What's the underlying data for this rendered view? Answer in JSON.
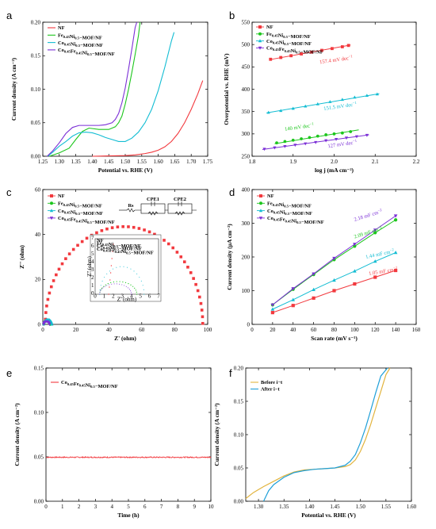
{
  "chart_data": [
    {
      "id": "a",
      "panel_label": "a",
      "type": "line",
      "xlabel": "Potential vs. RHE (V)",
      "ylabel": "Current density (A cm⁻²)",
      "xlim": [
        1.25,
        1.75
      ],
      "ylim": [
        0,
        0.2
      ],
      "xticks": [
        "1.25",
        "1.30",
        "1.35",
        "1.40",
        "1.45",
        "1.50",
        "1.55",
        "1.60",
        "1.65",
        "1.70",
        "1.75"
      ],
      "yticks": [
        "0.00",
        "0.05",
        "0.10",
        "0.15",
        "0.20"
      ],
      "legend_position": "top-left",
      "series": [
        {
          "name": "NF",
          "color": "#f2393e",
          "x": [
            1.4,
            1.45,
            1.5,
            1.53,
            1.56,
            1.58,
            1.6,
            1.62,
            1.64,
            1.66,
            1.68,
            1.7,
            1.72,
            1.735
          ],
          "y": [
            0,
            0.0005,
            0.001,
            0.002,
            0.004,
            0.006,
            0.009,
            0.014,
            0.022,
            0.034,
            0.05,
            0.07,
            0.093,
            0.113
          ]
        },
        {
          "name": "Fe0.45Ni0.5−MOF/NF",
          "color": "#1cc61c",
          "x": [
            1.27,
            1.3,
            1.33,
            1.35,
            1.37,
            1.39,
            1.42,
            1.45,
            1.47,
            1.48,
            1.49,
            1.5,
            1.51,
            1.52,
            1.53,
            1.54,
            1.545
          ],
          "y": [
            0,
            0.005,
            0.012,
            0.025,
            0.037,
            0.042,
            0.04,
            0.04,
            0.044,
            0.05,
            0.06,
            0.078,
            0.1,
            0.125,
            0.152,
            0.18,
            0.2
          ]
        },
        {
          "name": "Co0.45Ni0.5−MOF/NF",
          "color": "#13bdd3",
          "x": [
            1.265,
            1.28,
            1.3,
            1.32,
            1.34,
            1.36,
            1.38,
            1.4,
            1.42,
            1.44,
            1.46,
            1.48,
            1.5,
            1.52,
            1.54,
            1.56,
            1.58,
            1.6,
            1.62,
            1.64,
            1.648
          ],
          "y": [
            0,
            0.006,
            0.015,
            0.022,
            0.03,
            0.035,
            0.036,
            0.035,
            0.032,
            0.028,
            0.025,
            0.022,
            0.022,
            0.027,
            0.036,
            0.05,
            0.07,
            0.098,
            0.133,
            0.172,
            0.185
          ]
        },
        {
          "name": "Co0.45Fe0.45Ni0.5−MOF/NF",
          "color": "#7b2fd6",
          "x": [
            1.263,
            1.28,
            1.3,
            1.32,
            1.34,
            1.36,
            1.38,
            1.4,
            1.42,
            1.44,
            1.46,
            1.47,
            1.48,
            1.49,
            1.5,
            1.51,
            1.52,
            1.53,
            1.535
          ],
          "y": [
            0,
            0.008,
            0.02,
            0.034,
            0.043,
            0.046,
            0.046,
            0.046,
            0.046,
            0.047,
            0.05,
            0.055,
            0.064,
            0.08,
            0.102,
            0.13,
            0.16,
            0.192,
            0.2
          ]
        }
      ]
    },
    {
      "id": "b",
      "panel_label": "b",
      "type": "scatter",
      "xlabel": "log j (mA cm⁻²)",
      "ylabel": "Overpotential vs. RHE (mV)",
      "xlim": [
        1.8,
        2.2
      ],
      "ylim": [
        250,
        550
      ],
      "xticks": [
        "1.8",
        "1.9",
        "2.0",
        "2.1",
        "2.2"
      ],
      "yticks": [
        "250",
        "300",
        "350",
        "400",
        "450",
        "500",
        "550"
      ],
      "legend_position": "top-left",
      "series": [
        {
          "name": "NF",
          "color": "#f2393e",
          "marker": "square",
          "x": [
            1.845,
            1.87,
            1.895,
            1.92,
            1.945,
            1.97,
            1.995,
            2.02,
            2.035
          ],
          "y": [
            467,
            471,
            475,
            479,
            483,
            487,
            491,
            495,
            498
          ],
          "fit": [
            [
              1.842,
              466
            ],
            [
              2.04,
              499
            ]
          ]
        },
        {
          "name": "Fe0.45Ni0.5−MOF/NF",
          "color": "#1cc61c",
          "marker": "circle",
          "x": [
            1.86,
            1.88,
            1.9,
            1.92,
            1.94,
            1.96,
            1.98,
            2.0,
            2.02,
            2.04
          ],
          "y": [
            280,
            283,
            286,
            289,
            292,
            295,
            298,
            300,
            302,
            305
          ],
          "fit": [
            [
              1.855,
              278
            ],
            [
              2.06,
              309
            ]
          ]
        },
        {
          "name": "Co0.45Ni0.5−MOF/NF",
          "color": "#13bdd3",
          "marker": "triangle",
          "x": [
            1.84,
            1.87,
            1.9,
            1.93,
            1.96,
            1.99,
            2.02,
            2.05,
            2.08,
            2.105
          ],
          "y": [
            348,
            352,
            357,
            362,
            367,
            372,
            377,
            382,
            386,
            389
          ],
          "fit": [
            [
              1.835,
              347
            ],
            [
              2.11,
              390
            ]
          ]
        },
        {
          "name": "Co0.45Fe0.45Ni0.5−MOF/NF",
          "color": "#7b2fd6",
          "marker": "triangle-down",
          "x": [
            1.83,
            1.855,
            1.88,
            1.905,
            1.93,
            1.955,
            1.98,
            2.005,
            2.03,
            2.055,
            2.08
          ],
          "y": [
            266,
            269,
            272,
            275,
            278,
            281,
            285,
            288,
            291,
            294,
            297
          ],
          "fit": [
            [
              1.825,
              265
            ],
            [
              2.085,
              298
            ]
          ]
        }
      ],
      "annotations": [
        {
          "text": "157.4 mV dec",
          "sup": "−1",
          "color": "#f2393e",
          "x": 1.965,
          "y": 457
        },
        {
          "text": "151.5 mV dec",
          "sup": "−1",
          "color": "#13bdd3",
          "x": 1.975,
          "y": 353
        },
        {
          "text": "140 mV dec",
          "sup": "−1",
          "color": "#1cc61c",
          "x": 1.88,
          "y": 307
        },
        {
          "text": "127 mV dec",
          "sup": "−1",
          "color": "#7b2fd6",
          "x": 1.985,
          "y": 269
        }
      ]
    },
    {
      "id": "c",
      "panel_label": "c",
      "type": "scatter",
      "xlabel": "Z' (ohm)",
      "ylabel": "Z'' (ohm)",
      "xlim": [
        0,
        100
      ],
      "ylim": [
        0,
        60
      ],
      "xticks": [
        "0",
        "20",
        "40",
        "60",
        "80",
        "100"
      ],
      "yticks": [
        "0",
        "20",
        "40",
        "60"
      ],
      "legend_position": "top-left",
      "series": [
        {
          "name": "NF",
          "color": "#f2393e",
          "marker": "square",
          "semicircle": {
            "start": 1.5,
            "end": 97,
            "peak": 43.5,
            "points": 46
          }
        },
        {
          "name": "Fe0.45Ni0.5−MOF/NF",
          "color": "#1cc61c",
          "marker": "circle",
          "semicircle": {
            "start": 0.5,
            "end": 4.6,
            "peak": 1.6,
            "points": 12
          }
        },
        {
          "name": "Co0.45Ni0.5−MOF/NF",
          "color": "#13bdd3",
          "marker": "triangle",
          "semicircle": {
            "start": 0.5,
            "end": 5.5,
            "peak": 2.2,
            "points": 12
          }
        },
        {
          "name": "Co0.45Fe0.45Ni0.5−MOF/NF",
          "color": "#7b2fd6",
          "marker": "triangle-down",
          "semicircle": {
            "start": 0.5,
            "end": 4.0,
            "peak": 1.3,
            "points": 10
          }
        }
      ],
      "inset": {
        "xlim": [
          0,
          7
        ],
        "ylim": [
          0,
          7
        ],
        "xticks": [
          "0",
          "1",
          "2",
          "3",
          "4",
          "5",
          "6",
          "7"
        ],
        "yticks": [
          "0",
          "1",
          "2",
          "3",
          "4",
          "5",
          "6",
          "7"
        ],
        "xlabel": "Z' (ohm)",
        "ylabel": "Z'' (ohm)"
      },
      "circuit_labels": [
        "Rs",
        "Rct",
        "CPE1",
        "CPE2"
      ]
    },
    {
      "id": "d",
      "panel_label": "d",
      "type": "scatter",
      "xlabel": "Scan rate (mV s⁻¹)",
      "ylabel": "Current density (µA cm⁻²)",
      "xlim": [
        0,
        160
      ],
      "ylim": [
        0,
        400
      ],
      "xticks": [
        "0",
        "20",
        "40",
        "60",
        "80",
        "100",
        "120",
        "140",
        "160"
      ],
      "yticks": [
        "0",
        "100",
        "200",
        "300",
        "400"
      ],
      "legend_position": "top-left",
      "x": [
        20,
        40,
        60,
        80,
        100,
        120,
        140
      ],
      "series": [
        {
          "name": "NF",
          "color": "#f2393e",
          "marker": "square",
          "values": [
            35,
            56,
            78,
            100,
            120,
            140,
            160
          ]
        },
        {
          "name": "Fe0.45Ni0.5−MOF/NF",
          "color": "#1cc61c",
          "marker": "circle",
          "values": [
            58,
            104,
            148,
            192,
            232,
            272,
            310
          ]
        },
        {
          "name": "Co0.45Ni0.5−MOF/NF",
          "color": "#13bdd3",
          "marker": "triangle",
          "values": [
            45,
            73,
            103,
            131,
            158,
            187,
            213
          ]
        },
        {
          "name": "Co0.45Fe0.45Ni0.5−MOF/NF",
          "color": "#7b2fd6",
          "marker": "triangle-down",
          "values": [
            58,
            106,
            150,
            196,
            238,
            280,
            322
          ]
        }
      ],
      "annotations": [
        {
          "text": "2.18 mF cm",
          "sup": "−2",
          "color": "#7b2fd6",
          "x": 100,
          "y": 306,
          "angle": -17
        },
        {
          "text": "2.09 mF cm",
          "sup": "−2",
          "color": "#1cc61c",
          "x": 100,
          "y": 255,
          "angle": -17
        },
        {
          "text": "1.44 mF cm",
          "sup": "−2",
          "color": "#13bdd3",
          "x": 111,
          "y": 195,
          "angle": -12
        },
        {
          "text": "1.05 mF cm",
          "sup": "−2",
          "color": "#f2393e",
          "x": 114,
          "y": 146,
          "angle": -9
        }
      ]
    },
    {
      "id": "e",
      "panel_label": "e",
      "type": "line",
      "xlabel": "Time (h)",
      "ylabel": "Current density (A cm⁻²)",
      "xlim": [
        0,
        10
      ],
      "ylim": [
        0,
        0.15
      ],
      "xticks": [
        "0",
        "1",
        "2",
        "3",
        "4",
        "5",
        "6",
        "7",
        "8",
        "9",
        "10"
      ],
      "yticks": [
        "0.00",
        "0.05",
        "0.10",
        "0.15"
      ],
      "legend_position": "top-left",
      "series": [
        {
          "name": "Co0.45Fe0.45Ni0.5−MOF/NF",
          "color": "#f2393e",
          "mean": 0.0495,
          "noise": 0.0006
        }
      ]
    },
    {
      "id": "f",
      "panel_label": "f",
      "type": "line",
      "xlabel": "Potential vs. RHE (V)",
      "ylabel": "Current density (A cm⁻²)",
      "xlim": [
        1.275,
        1.6
      ],
      "ylim": [
        0,
        0.2
      ],
      "xticks": [
        "1.30",
        "1.35",
        "1.40",
        "1.45",
        "1.50",
        "1.55",
        "1.60"
      ],
      "xtick_values": [
        1.3,
        1.35,
        1.4,
        1.45,
        1.5,
        1.55,
        1.6
      ],
      "yticks": [
        "0.00",
        "0.05",
        "0.10",
        "0.15",
        "0.20"
      ],
      "legend_position": "top-left",
      "series": [
        {
          "name": "Before i−t",
          "color": "#e2b43e",
          "x": [
            1.275,
            1.29,
            1.31,
            1.33,
            1.35,
            1.37,
            1.39,
            1.41,
            1.43,
            1.45,
            1.47,
            1.48,
            1.49,
            1.5,
            1.51,
            1.52,
            1.53,
            1.54,
            1.55,
            1.558
          ],
          "y": [
            0.004,
            0.013,
            0.022,
            0.03,
            0.038,
            0.044,
            0.047,
            0.048,
            0.049,
            0.05,
            0.052,
            0.055,
            0.062,
            0.075,
            0.093,
            0.115,
            0.14,
            0.165,
            0.19,
            0.2
          ]
        },
        {
          "name": "After i−t",
          "color": "#1e9fd8",
          "x": [
            1.31,
            1.315,
            1.32,
            1.33,
            1.35,
            1.37,
            1.39,
            1.41,
            1.43,
            1.45,
            1.47,
            1.48,
            1.49,
            1.5,
            1.51,
            1.52,
            1.53,
            1.54,
            1.553
          ],
          "y": [
            0,
            0.008,
            0.016,
            0.025,
            0.036,
            0.043,
            0.046,
            0.048,
            0.049,
            0.05,
            0.054,
            0.06,
            0.07,
            0.088,
            0.11,
            0.136,
            0.163,
            0.188,
            0.2
          ]
        }
      ]
    }
  ]
}
